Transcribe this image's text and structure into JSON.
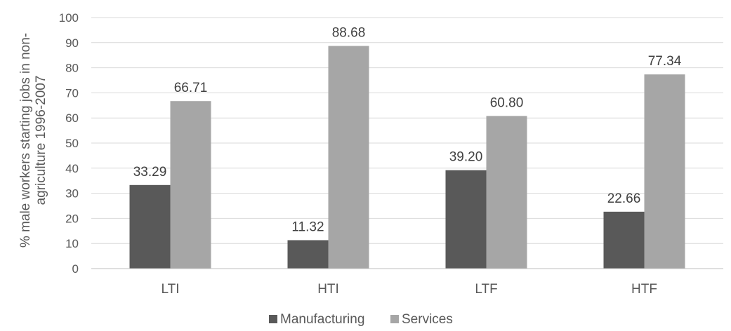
{
  "chart_data": {
    "type": "bar",
    "categories": [
      "LTI",
      "HTI",
      "LTF",
      "HTF"
    ],
    "series": [
      {
        "name": "Manufacturing",
        "values": [
          33.29,
          11.32,
          39.2,
          22.66
        ],
        "labels": [
          "33.29",
          "11.32",
          "39.20",
          "22.66"
        ],
        "color": "#595959"
      },
      {
        "name": "Services",
        "values": [
          66.71,
          88.68,
          60.8,
          77.34
        ],
        "labels": [
          "66.71",
          "88.68",
          "60.80",
          "77.34"
        ],
        "color": "#a6a6a6"
      }
    ],
    "ylabel_lines": [
      "% male workers starting jobs in non-",
      "agriculture 1996-2007"
    ],
    "ylim": [
      0,
      100
    ],
    "yticks": [
      "0",
      "10",
      "20",
      "30",
      "40",
      "50",
      "60",
      "70",
      "80",
      "90",
      "100"
    ],
    "grid": true,
    "legend_position": "bottom",
    "gridline_color": "#d9d9d9",
    "axis_color": "#bfbfbf"
  }
}
